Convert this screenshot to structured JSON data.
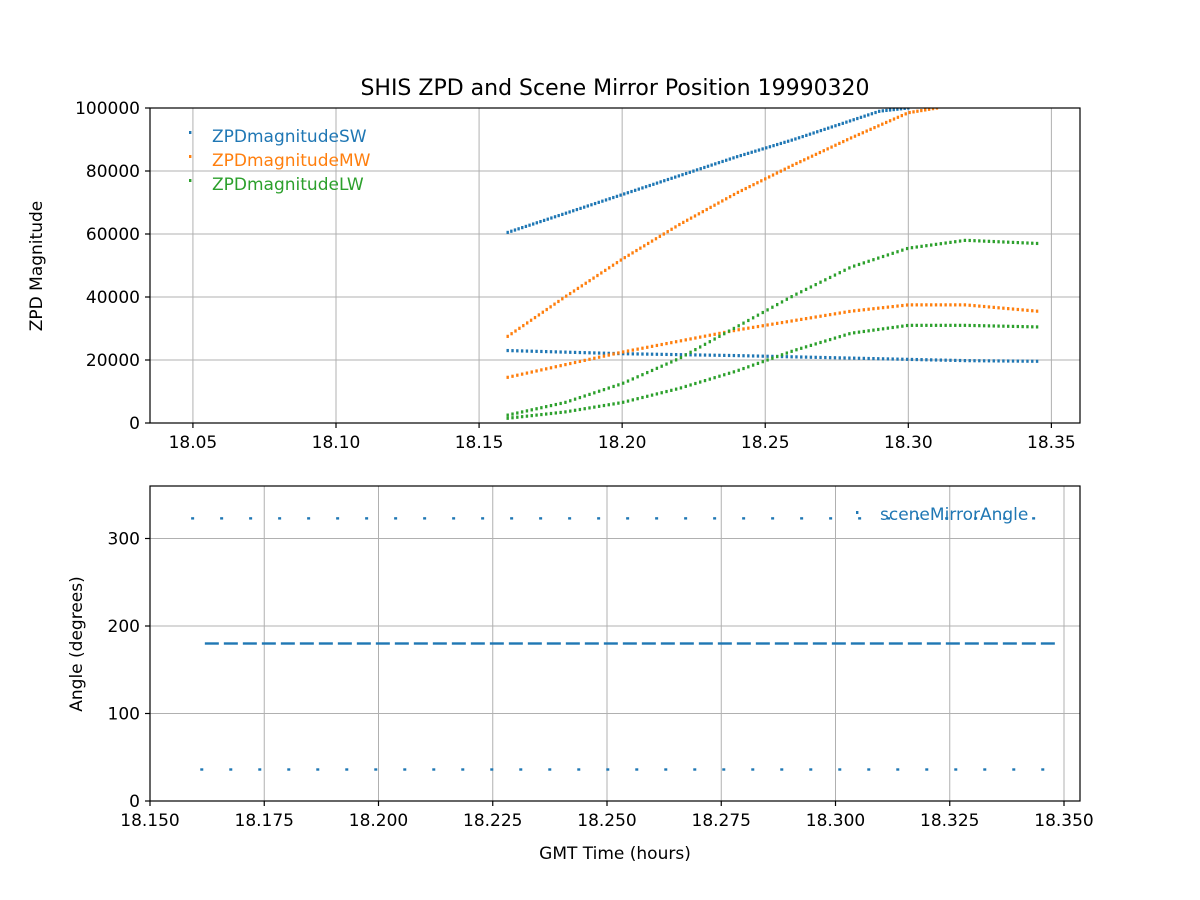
{
  "chart_data": [
    {
      "type": "scatter",
      "title": "SHIS ZPD and Scene Mirror Position 19990320",
      "xlabel": "",
      "ylabel": "ZPD Magnitude",
      "xlim": [
        18.035,
        18.36
      ],
      "ylim": [
        0,
        100000
      ],
      "xticks": [
        18.05,
        18.1,
        18.15,
        18.2,
        18.25,
        18.3,
        18.35
      ],
      "xtick_labels": [
        "18.05",
        "18.10",
        "18.15",
        "18.20",
        "18.25",
        "18.30",
        "18.35"
      ],
      "yticks": [
        0,
        20000,
        40000,
        60000,
        80000,
        100000
      ],
      "ytick_labels": [
        "0",
        "20000",
        "40000",
        "60000",
        "80000",
        "100000"
      ],
      "grid": true,
      "legend_position": "top-left",
      "colors": {
        "ZPDmagnitudeSW": "#1f77b4",
        "ZPDmagnitudeMW": "#ff7f0e",
        "ZPDmagnitudeLW": "#2ca02c"
      },
      "series": [
        {
          "name": "ZPDmagnitudeSW",
          "color": "#1f77b4",
          "traces": [
            {
              "x": [
                18.16,
                18.18,
                18.2,
                18.22,
                18.24,
                18.26,
                18.28,
                18.29,
                18.3
              ],
              "y": [
                60500,
                66500,
                72500,
                78500,
                84500,
                90000,
                96000,
                99000,
                100000
              ]
            },
            {
              "x": [
                18.16,
                18.18,
                18.2,
                18.22,
                18.24,
                18.26,
                18.28,
                18.3,
                18.32,
                18.345
              ],
              "y": [
                23000,
                22500,
                22000,
                21700,
                21400,
                21000,
                20600,
                20200,
                19800,
                19600
              ]
            }
          ]
        },
        {
          "name": "ZPDmagnitudeMW",
          "color": "#ff7f0e",
          "traces": [
            {
              "x": [
                18.16,
                18.18,
                18.2,
                18.22,
                18.24,
                18.26,
                18.28,
                18.3,
                18.31
              ],
              "y": [
                27500,
                40000,
                52000,
                63000,
                73000,
                82000,
                90500,
                98500,
                100000
              ]
            },
            {
              "x": [
                18.16,
                18.18,
                18.2,
                18.22,
                18.24,
                18.26,
                18.28,
                18.3,
                18.32,
                18.345
              ],
              "y": [
                14500,
                18500,
                22500,
                26000,
                29500,
                32500,
                35500,
                37500,
                37500,
                35500
              ]
            }
          ]
        },
        {
          "name": "ZPDmagnitudeLW",
          "color": "#2ca02c",
          "traces": [
            {
              "x": [
                18.16,
                18.18,
                18.2,
                18.22,
                18.24,
                18.26,
                18.28,
                18.3,
                18.32,
                18.345
              ],
              "y": [
                2500,
                6500,
                12500,
                20500,
                30500,
                40500,
                49500,
                55500,
                58000,
                57000
              ]
            },
            {
              "x": [
                18.16,
                18.18,
                18.2,
                18.22,
                18.24,
                18.26,
                18.28,
                18.3,
                18.32,
                18.345
              ],
              "y": [
                1500,
                3500,
                6500,
                11000,
                16500,
                23000,
                28500,
                31000,
                31000,
                30500
              ]
            }
          ]
        }
      ]
    },
    {
      "type": "scatter",
      "title": "",
      "xlabel": "GMT Time (hours)",
      "ylabel": "Angle (degrees)",
      "xlim": [
        18.15,
        18.3535
      ],
      "ylim": [
        0,
        360
      ],
      "xticks": [
        18.15,
        18.175,
        18.2,
        18.225,
        18.25,
        18.275,
        18.3,
        18.325,
        18.35
      ],
      "xtick_labels": [
        "18.150",
        "18.175",
        "18.200",
        "18.225",
        "18.250",
        "18.275",
        "18.300",
        "18.325",
        "18.350"
      ],
      "yticks": [
        0,
        100,
        200,
        300
      ],
      "ytick_labels": [
        "0",
        "100",
        "200",
        "300"
      ],
      "grid": true,
      "legend_position": "top-right",
      "series": [
        {
          "name": "sceneMirrorAngle",
          "color": "#1f77b4",
          "traces": [
            {
              "style": "dotted",
              "x_start": 18.159,
              "x_end": 18.346,
              "y": 323
            },
            {
              "style": "dashed",
              "x_start": 18.162,
              "x_end": 18.346,
              "y": 180
            },
            {
              "style": "dotted",
              "x_start": 18.161,
              "x_end": 18.346,
              "y": 36
            }
          ]
        }
      ]
    }
  ]
}
